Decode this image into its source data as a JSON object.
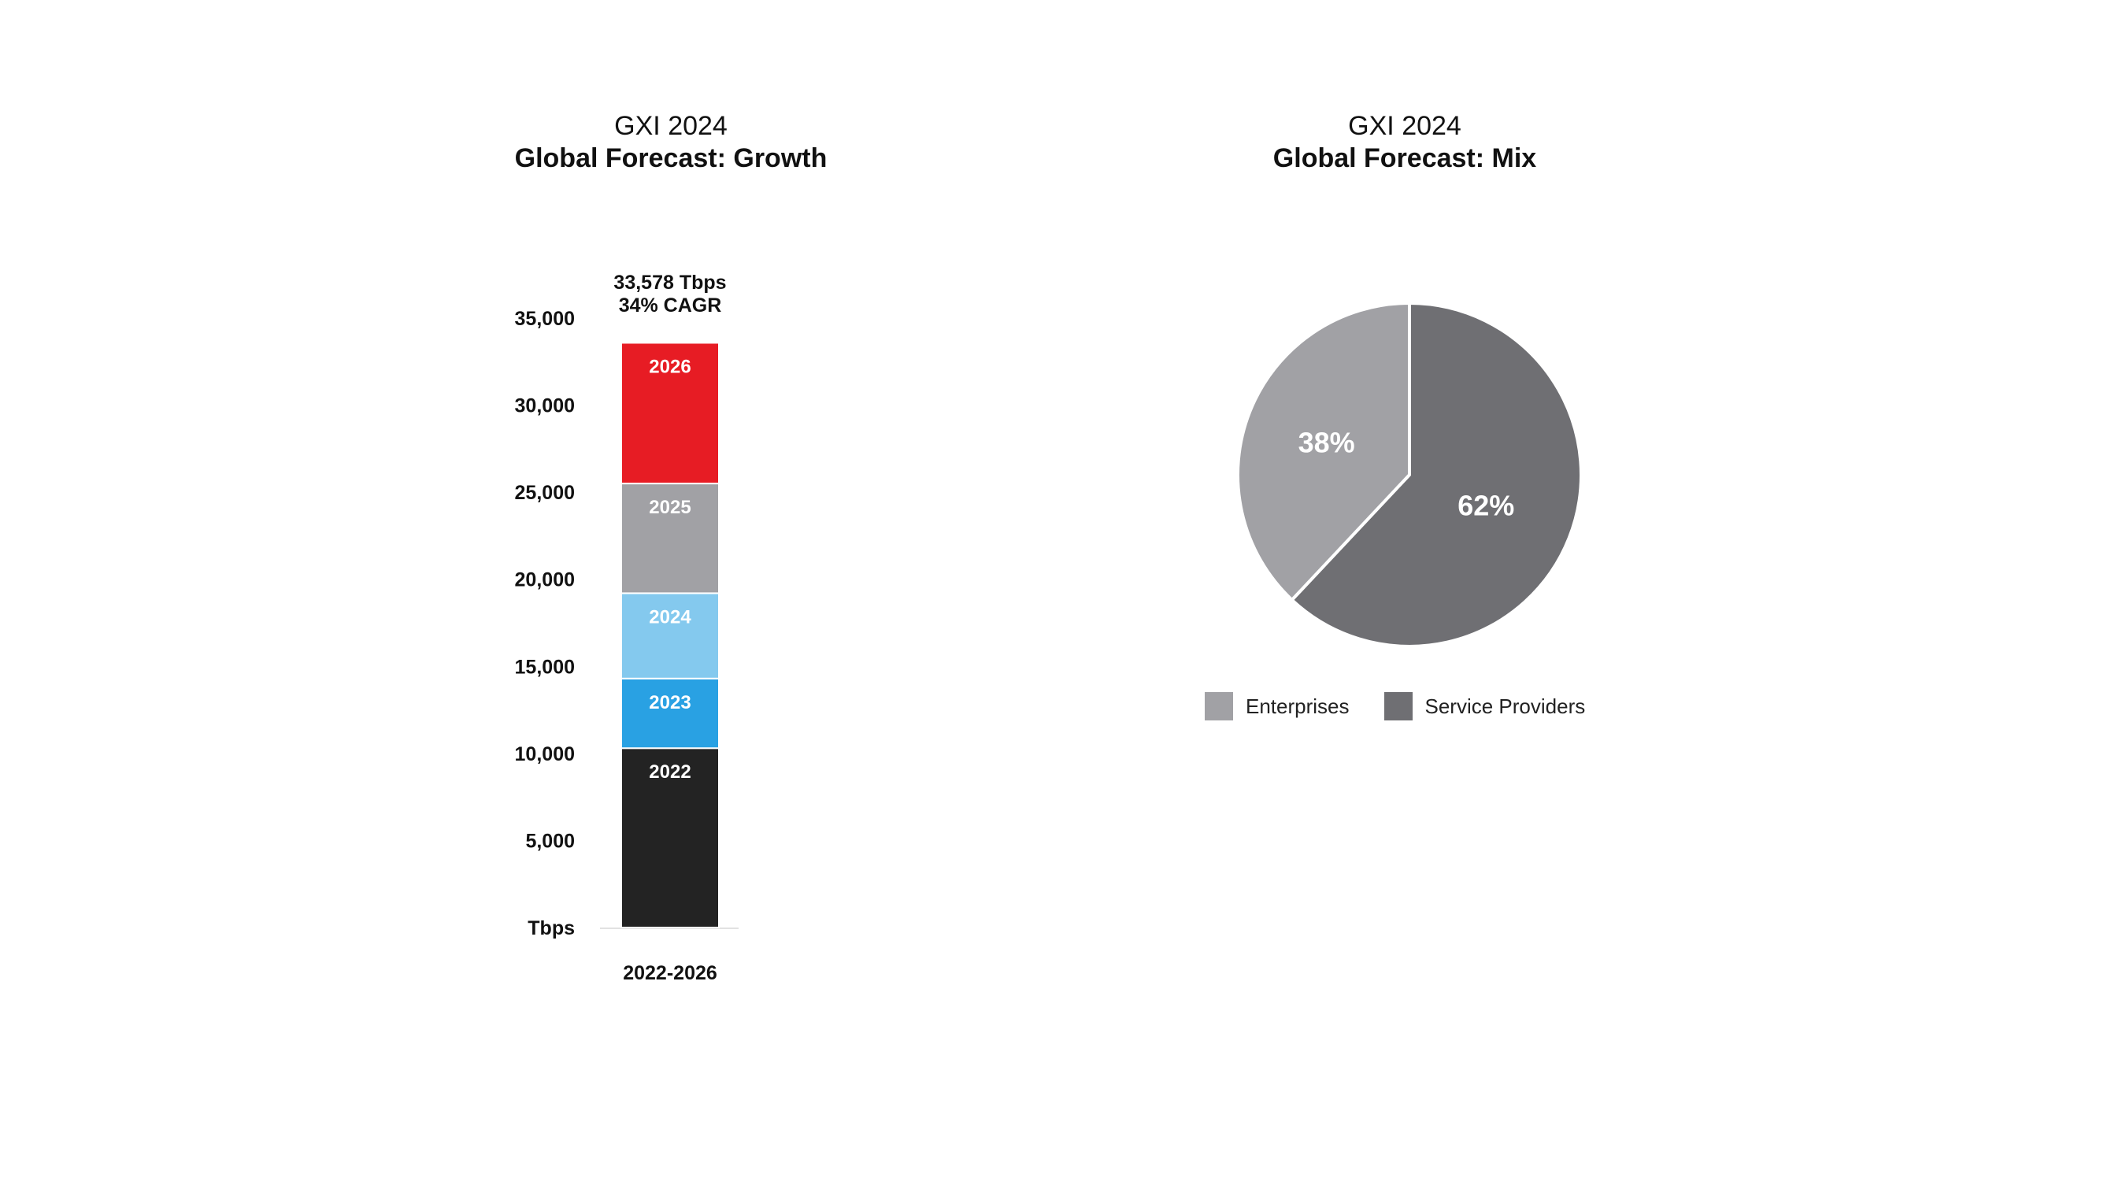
{
  "chart_data": [
    {
      "type": "bar",
      "title": "GXI 2024",
      "subtitle": "Global Forecast: Growth",
      "annotation": [
        "33,578 Tbps",
        "34% CAGR"
      ],
      "xlabel": "2022-2026",
      "ylabel": "Tbps",
      "ylim": [
        0,
        35000
      ],
      "yticks": [
        {
          "value": 0,
          "label": "Tbps"
        },
        {
          "value": 5000,
          "label": "5,000"
        },
        {
          "value": 10000,
          "label": "10,000"
        },
        {
          "value": 15000,
          "label": "15,000"
        },
        {
          "value": 20000,
          "label": "20,000"
        },
        {
          "value": 25000,
          "label": "25,000"
        },
        {
          "value": 30000,
          "label": "30,000"
        },
        {
          "value": 35000,
          "label": "35,000"
        }
      ],
      "categories": [
        "2022-2026"
      ],
      "stacked": true,
      "series": [
        {
          "name": "2022",
          "values": [
            10300
          ],
          "color": "#232323"
        },
        {
          "name": "2023",
          "values": [
            4000
          ],
          "color": "#29a1e3"
        },
        {
          "name": "2024",
          "values": [
            4900
          ],
          "color": "#84c9ee"
        },
        {
          "name": "2025",
          "values": [
            6300
          ],
          "color": "#a1a1a5"
        },
        {
          "name": "2026",
          "values": [
            8078
          ],
          "color": "#e71c24"
        }
      ],
      "total": 33578
    },
    {
      "type": "pie",
      "title": "GXI 2024",
      "subtitle": "Global Forecast: Mix",
      "slices": [
        {
          "name": "Enterprises",
          "value": 38,
          "label": "38%",
          "color": "#a1a1a5"
        },
        {
          "name": "Service Providers",
          "value": 62,
          "label": "62%",
          "color": "#6f6f73"
        }
      ],
      "legend": "bottom"
    }
  ]
}
